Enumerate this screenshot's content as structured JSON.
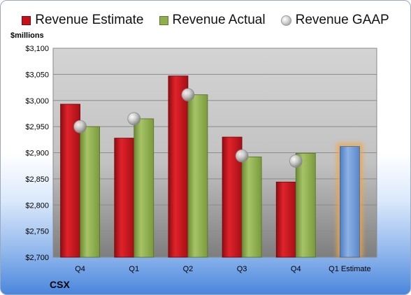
{
  "chart_data": {
    "type": "bar",
    "unit_label": "$millions",
    "company": "CSX",
    "categories": [
      "Q4",
      "Q1",
      "Q2",
      "Q3",
      "Q4",
      "Q1 Estimate"
    ],
    "series": [
      {
        "name": "Revenue Estimate",
        "color": "#c8101a",
        "values": [
          2993,
          2928,
          3047,
          2930,
          2844,
          null
        ]
      },
      {
        "name": "Revenue Actual",
        "color": "#8fae4e",
        "values": [
          2950,
          2965,
          3011,
          2892,
          2899,
          null
        ]
      },
      {
        "name": "Revenue GAAP",
        "color": "#b0b0b0",
        "marker": "sphere",
        "values": [
          2950,
          2965,
          3011,
          2894,
          2884,
          null
        ]
      }
    ],
    "forecast": {
      "category": "Q1 Estimate",
      "value": 2912,
      "color": "#6f9ad6",
      "highlight": "#f4a640"
    },
    "ylim": [
      2700,
      3100
    ],
    "yticks": [
      2700,
      2750,
      2800,
      2850,
      2900,
      2950,
      3000,
      3050,
      3100
    ],
    "ytick_labels": [
      "$2,700",
      "$2,750",
      "$2,800",
      "$2,850",
      "$2,900",
      "$2,950",
      "$3,000",
      "$3,050",
      "$3,100"
    ],
    "grid": true,
    "legend_position": "top"
  }
}
